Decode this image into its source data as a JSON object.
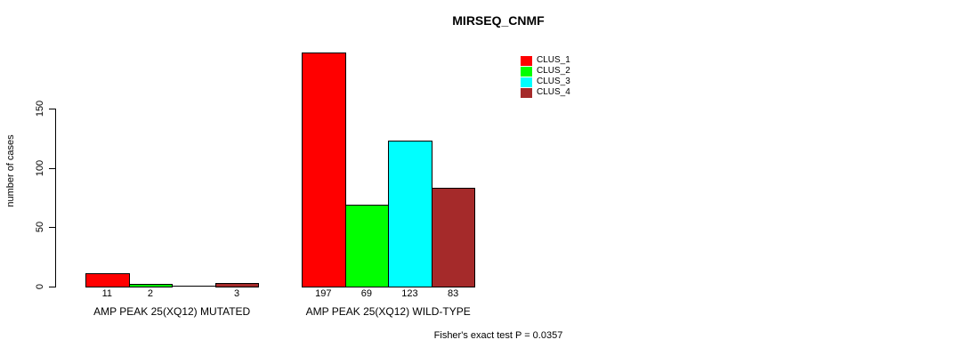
{
  "chart_data": {
    "type": "bar",
    "title": "MIRSEQ_CNMF",
    "xlabel": "",
    "ylabel": "number of cases",
    "ylim": [
      0,
      150
    ],
    "yticks": [
      0,
      50,
      100,
      150
    ],
    "grid": false,
    "legend_position": "top-right",
    "categories": [
      "AMP PEAK 25(XQ12) MUTATED",
      "AMP PEAK 25(XQ12) WILD-TYPE"
    ],
    "series": [
      {
        "name": "CLUS_1",
        "color": "#FF0000",
        "values": [
          11,
          197
        ]
      },
      {
        "name": "CLUS_2",
        "color": "#00FF00",
        "values": [
          2,
          69
        ]
      },
      {
        "name": "CLUS_3",
        "color": "#00FFFF",
        "values": [
          0,
          123
        ]
      },
      {
        "name": "CLUS_4",
        "color": "#A52A2A",
        "values": [
          3,
          83
        ]
      }
    ],
    "bar_value_labels": [
      [
        "11",
        "2",
        "",
        "3"
      ],
      [
        "197",
        "69",
        "123",
        "83"
      ]
    ],
    "annotation": "Fisher's exact test P = 0.0357"
  }
}
